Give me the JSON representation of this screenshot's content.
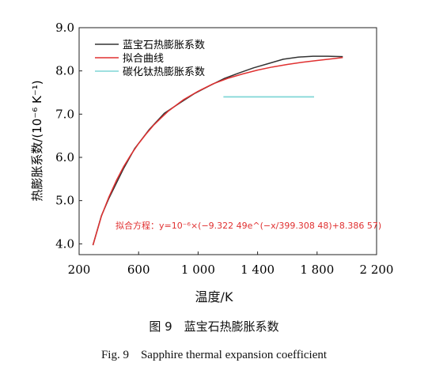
{
  "chart_data": {
    "type": "line",
    "xlabel": "温度/K",
    "ylabel": "热膨胀系数/(10⁻⁶ K⁻¹)",
    "xlim": [
      200,
      2200
    ],
    "ylim": [
      3.75,
      9.0
    ],
    "xticks": [
      200,
      600,
      1000,
      1400,
      1800,
      2200
    ],
    "xtick_labels": [
      "200",
      "600",
      "1 000",
      "1 400",
      "1 800",
      "2 200"
    ],
    "yticks": [
      4.0,
      5.0,
      6.0,
      7.0,
      8.0,
      9.0
    ],
    "ytick_labels": [
      "4.0",
      "5.0",
      "6.0",
      "7.0",
      "8.0",
      "9.0"
    ],
    "legend_position": "top-left",
    "series": [
      {
        "name": "蓝宝石热膨胀系数",
        "color": "#333333",
        "x": [
          293,
          350,
          400,
          500,
          573,
          673,
          773,
          873,
          973,
          1073,
          1173,
          1273,
          1373,
          1473,
          1573,
          1673,
          1773,
          1873,
          1973
        ],
        "y": [
          3.97,
          4.65,
          5.05,
          5.75,
          6.2,
          6.65,
          7.02,
          7.25,
          7.47,
          7.65,
          7.82,
          7.95,
          8.07,
          8.17,
          8.27,
          8.32,
          8.34,
          8.34,
          8.33
        ]
      },
      {
        "name": "拟合曲线",
        "color": "#e03030",
        "x": [
          293,
          350,
          400,
          450,
          500,
          550,
          600,
          650,
          700,
          750,
          800,
          900,
          1000,
          1100,
          1200,
          1300,
          1400,
          1500,
          1600,
          1700,
          1800,
          1900,
          1973
        ],
        "y": [
          3.97,
          4.64,
          5.08,
          5.46,
          5.79,
          6.07,
          6.32,
          6.54,
          6.74,
          6.91,
          7.07,
          7.33,
          7.53,
          7.7,
          7.83,
          7.93,
          8.02,
          8.09,
          8.15,
          8.2,
          8.24,
          8.28,
          8.31
        ]
      },
      {
        "name": "碳化钛热膨胀系数",
        "color": "#7fd6d6",
        "x": [
          1170,
          1780
        ],
        "y": [
          7.4,
          7.4
        ]
      }
    ],
    "annotation": "拟合方程：y=10⁻⁶×(−9.322 49e^(−x/399.308 48)+8.386 57)"
  },
  "figure": {
    "caption_cn": "图 9　蓝宝石热膨胀系数",
    "caption_en": "Fig. 9　Sapphire thermal expansion coefficient"
  }
}
